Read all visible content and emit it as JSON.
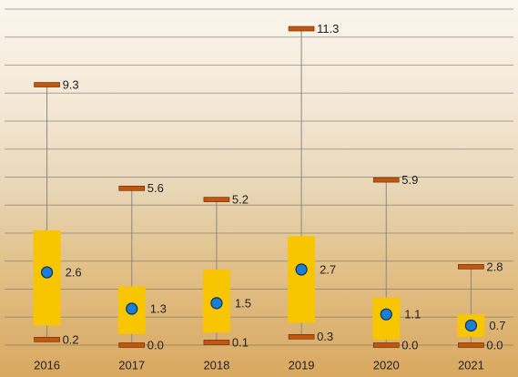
{
  "chart_data": {
    "type": "box",
    "categories": [
      "2016",
      "2017",
      "2018",
      "2019",
      "2020",
      "2021"
    ],
    "max": {
      "values": [
        9.3,
        5.6,
        5.2,
        11.3,
        5.9,
        2.8
      ]
    },
    "q3": {
      "values": [
        4.1,
        2.1,
        2.7,
        3.9,
        1.7,
        1.1
      ]
    },
    "mean": {
      "values": [
        2.6,
        1.3,
        1.5,
        2.7,
        1.1,
        0.7
      ]
    },
    "q1": {
      "values": [
        0.7,
        0.4,
        0.45,
        0.8,
        0.2,
        0.3
      ]
    },
    "min": {
      "values": [
        0.2,
        0,
        0.1,
        0.3,
        0,
        0
      ],
      "value_labels": [
        "0.2",
        "0.0",
        "0.1",
        "0.3",
        "0.0",
        "0.0"
      ]
    },
    "box_color": "#f7c600",
    "mean_color": "#1b7fd6",
    "cap_color": "#c4550c",
    "whisker_color": "#888888",
    "ylim": [
      0,
      12
    ],
    "yticks": [
      0,
      1,
      2,
      3,
      4,
      5,
      6,
      7,
      8,
      9,
      10,
      11,
      12
    ],
    "grid": true
  }
}
